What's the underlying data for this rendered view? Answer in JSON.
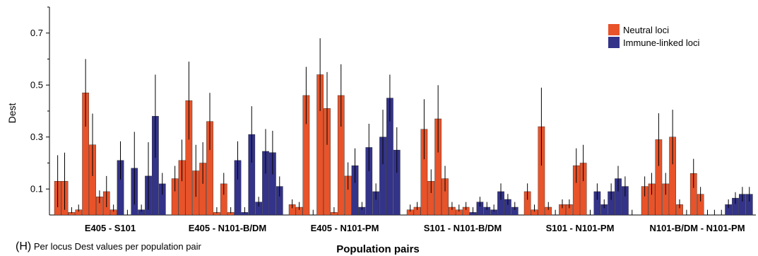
{
  "chart_data": {
    "type": "bar",
    "title": "",
    "xlabel": "Population pairs",
    "ylabel": "Dest",
    "ylim": [
      0,
      0.8
    ],
    "yticks": [
      0.1,
      0.3,
      0.5,
      0.7
    ],
    "ytick_labels": [
      "0.1",
      "0.3",
      "0.5",
      "0.7"
    ],
    "legend_position": "top-right",
    "series_colors": {
      "neutral": "#e8532a",
      "immune": "#33338a"
    },
    "legend": [
      "Neutral loci",
      "Immune-linked loci"
    ],
    "caption_letter": "(H)",
    "caption_text": "Per locus Dest values per population pair",
    "groups": [
      {
        "label": "E405 - S101",
        "neutral": [
          {
            "v": 0.13,
            "e": 0.1
          },
          {
            "v": 0.13,
            "e": 0.11
          },
          {
            "v": 0.01,
            "e": 0.0
          },
          {
            "v": 0.02,
            "e": 0.0
          },
          {
            "v": 0.47,
            "e": 0.13
          },
          {
            "v": 0.27,
            "e": 0.12
          },
          {
            "v": 0.07,
            "e": 0.0
          },
          {
            "v": 0.09,
            "e": 0.06
          },
          {
            "v": 0.02,
            "e": 0.0
          }
        ],
        "immune": [
          {
            "v": 0.21,
            "e": 0.0
          },
          {
            "v": 0.0,
            "e": 0.0
          },
          {
            "v": 0.18,
            "e": 0.14
          },
          {
            "v": 0.02,
            "e": 0.0
          },
          {
            "v": 0.15,
            "e": 0.13
          },
          {
            "v": 0.38,
            "e": 0.16
          },
          {
            "v": 0.12,
            "e": 0.0
          }
        ]
      },
      {
        "label": "E405 - N101-B/DM",
        "neutral": [
          {
            "v": 0.14,
            "e": 0.0
          },
          {
            "v": 0.21,
            "e": 0.08
          },
          {
            "v": 0.44,
            "e": 0.15
          },
          {
            "v": 0.17,
            "e": 0.1
          },
          {
            "v": 0.2,
            "e": 0.08
          },
          {
            "v": 0.36,
            "e": 0.11
          },
          {
            "v": 0.01,
            "e": 0.0
          },
          {
            "v": 0.12,
            "e": 0.0
          },
          {
            "v": 0.01,
            "e": 0.0
          }
        ],
        "immune": [
          {
            "v": 0.21,
            "e": 0.0
          },
          {
            "v": 0.01,
            "e": 0.0
          },
          {
            "v": 0.31,
            "e": 0.0
          },
          {
            "v": 0.05,
            "e": 0.0
          },
          {
            "v": 0.245,
            "e": 0.0
          },
          {
            "v": 0.24,
            "e": 0.0
          },
          {
            "v": 0.11,
            "e": 0.0
          }
        ]
      },
      {
        "label": "E405 - N101-PM",
        "neutral": [
          {
            "v": 0.04,
            "e": 0.0
          },
          {
            "v": 0.03,
            "e": 0.0
          },
          {
            "v": 0.46,
            "e": 0.11
          },
          {
            "v": 0.0,
            "e": 0.0
          },
          {
            "v": 0.54,
            "e": 0.14
          },
          {
            "v": 0.41,
            "e": 0.14
          },
          {
            "v": 0.01,
            "e": 0.0
          },
          {
            "v": 0.46,
            "e": 0.12
          },
          {
            "v": 0.15,
            "e": 0.0
          }
        ],
        "immune": [
          {
            "v": 0.19,
            "e": 0.0
          },
          {
            "v": 0.03,
            "e": 0.0
          },
          {
            "v": 0.26,
            "e": 0.0
          },
          {
            "v": 0.09,
            "e": 0.0
          },
          {
            "v": 0.3,
            "e": 0.0
          },
          {
            "v": 0.45,
            "e": 0.09
          },
          {
            "v": 0.25,
            "e": 0.0
          }
        ]
      },
      {
        "label": "S101 - N101-B/DM",
        "neutral": [
          {
            "v": 0.02,
            "e": 0.0
          },
          {
            "v": 0.03,
            "e": 0.0
          },
          {
            "v": 0.33,
            "e": 0.0
          },
          {
            "v": 0.13,
            "e": 0.0
          },
          {
            "v": 0.37,
            "e": 0.0
          },
          {
            "v": 0.14,
            "e": 0.0
          },
          {
            "v": 0.03,
            "e": 0.0
          },
          {
            "v": 0.02,
            "e": 0.0
          },
          {
            "v": 0.03,
            "e": 0.0
          }
        ],
        "immune": [
          {
            "v": 0.01,
            "e": 0.0
          },
          {
            "v": 0.05,
            "e": 0.0
          },
          {
            "v": 0.03,
            "e": 0.0
          },
          {
            "v": 0.02,
            "e": 0.0
          },
          {
            "v": 0.09,
            "e": 0.0
          },
          {
            "v": 0.06,
            "e": 0.0
          },
          {
            "v": 0.03,
            "e": 0.0
          }
        ]
      },
      {
        "label": "S101 - N101-PM",
        "neutral": [
          {
            "v": 0.09,
            "e": 0.0
          },
          {
            "v": 0.02,
            "e": 0.0
          },
          {
            "v": 0.34,
            "e": 0.15
          },
          {
            "v": 0.03,
            "e": 0.0
          },
          {
            "v": 0.0,
            "e": 0.0
          },
          {
            "v": 0.04,
            "e": 0.0
          },
          {
            "v": 0.04,
            "e": 0.0
          },
          {
            "v": 0.19,
            "e": 0.0
          },
          {
            "v": 0.2,
            "e": 0.0
          }
        ],
        "immune": [
          {
            "v": 0.0,
            "e": 0.0
          },
          {
            "v": 0.09,
            "e": 0.0
          },
          {
            "v": 0.04,
            "e": 0.0
          },
          {
            "v": 0.09,
            "e": 0.0
          },
          {
            "v": 0.14,
            "e": 0.0
          },
          {
            "v": 0.11,
            "e": 0.0
          },
          {
            "v": 0.0,
            "e": 0.0
          }
        ]
      },
      {
        "label": "N101-B/DM - N101-PM",
        "neutral": [
          {
            "v": 0.11,
            "e": 0.0
          },
          {
            "v": 0.12,
            "e": 0.0
          },
          {
            "v": 0.29,
            "e": 0.0
          },
          {
            "v": 0.12,
            "e": 0.0
          },
          {
            "v": 0.3,
            "e": 0.0
          },
          {
            "v": 0.04,
            "e": 0.0
          },
          {
            "v": 0.0,
            "e": 0.0
          },
          {
            "v": 0.16,
            "e": 0.0
          },
          {
            "v": 0.08,
            "e": 0.0
          }
        ],
        "immune": [
          {
            "v": 0.0,
            "e": 0.0
          },
          {
            "v": 0.0,
            "e": 0.0
          },
          {
            "v": 0.0,
            "e": 0.0
          },
          {
            "v": 0.04,
            "e": 0.0
          },
          {
            "v": 0.065,
            "e": 0.0
          },
          {
            "v": 0.08,
            "e": 0.0
          },
          {
            "v": 0.08,
            "e": 0.0
          }
        ]
      }
    ]
  }
}
